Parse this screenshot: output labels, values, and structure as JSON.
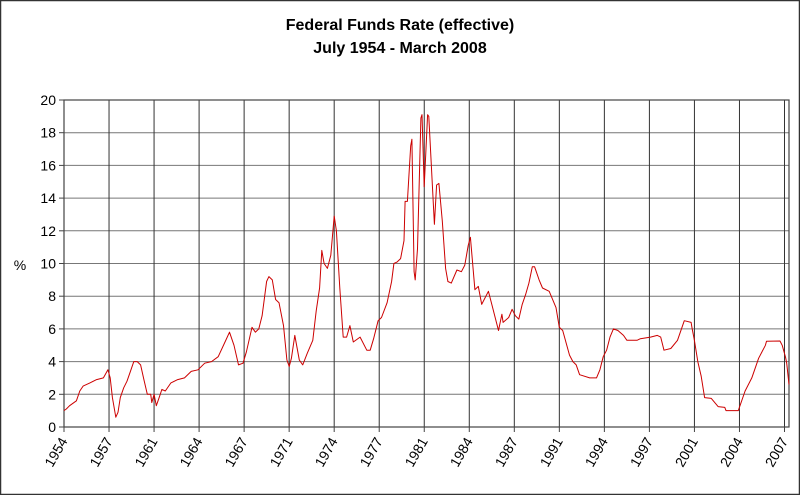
{
  "chart_data": {
    "type": "line",
    "title": "Federal Funds Rate (effective)",
    "subtitle": "July 1954 - March 2008",
    "xlabel": "",
    "ylabel": "%",
    "ylim": [
      0,
      20
    ],
    "yticks": [
      0,
      2,
      4,
      6,
      8,
      10,
      12,
      14,
      16,
      18,
      20
    ],
    "xlim": [
      "1954-07",
      "2008-03"
    ],
    "xtick_labels": [
      "1954",
      "1957",
      "1961",
      "1964",
      "1967",
      "1971",
      "1974",
      "1977",
      "1981",
      "1984",
      "1987",
      "1991",
      "1994",
      "1997",
      "2001",
      "2004",
      "2007"
    ],
    "xtick_dates": [
      "1954-07",
      "1957-11",
      "1961-03",
      "1964-07",
      "1967-11",
      "1971-03",
      "1974-07",
      "1977-11",
      "1981-03",
      "1984-07",
      "1987-11",
      "1991-03",
      "1994-07",
      "1997-11",
      "2001-03",
      "2004-07",
      "2007-11"
    ],
    "grid": true,
    "line_color": "#cc0000",
    "series": [
      {
        "points": [
          [
            "1954-07",
            1.0
          ],
          [
            "1954-09",
            1.1
          ],
          [
            "1954-12",
            1.3
          ],
          [
            "1955-06",
            1.6
          ],
          [
            "1955-09",
            2.2
          ],
          [
            "1955-12",
            2.5
          ],
          [
            "1956-06",
            2.7
          ],
          [
            "1956-12",
            2.9
          ],
          [
            "1957-06",
            3.0
          ],
          [
            "1957-10",
            3.5
          ],
          [
            "1957-12",
            3.0
          ],
          [
            "1958-02",
            1.8
          ],
          [
            "1958-05",
            0.6
          ],
          [
            "1958-07",
            0.9
          ],
          [
            "1958-09",
            1.8
          ],
          [
            "1958-12",
            2.4
          ],
          [
            "1959-03",
            2.8
          ],
          [
            "1959-06",
            3.4
          ],
          [
            "1959-09",
            4.0
          ],
          [
            "1959-12",
            4.0
          ],
          [
            "1960-03",
            3.8
          ],
          [
            "1960-06",
            2.9
          ],
          [
            "1960-09",
            2.0
          ],
          [
            "1960-12",
            2.0
          ],
          [
            "1961-01",
            1.5
          ],
          [
            "1961-03",
            2.0
          ],
          [
            "1961-05",
            1.3
          ],
          [
            "1961-07",
            1.7
          ],
          [
            "1961-10",
            2.3
          ],
          [
            "1962-01",
            2.2
          ],
          [
            "1962-06",
            2.7
          ],
          [
            "1962-12",
            2.9
          ],
          [
            "1963-06",
            3.0
          ],
          [
            "1963-12",
            3.4
          ],
          [
            "1964-06",
            3.5
          ],
          [
            "1964-12",
            3.9
          ],
          [
            "1965-06",
            4.0
          ],
          [
            "1965-12",
            4.3
          ],
          [
            "1966-06",
            5.2
          ],
          [
            "1966-10",
            5.8
          ],
          [
            "1967-02",
            5.0
          ],
          [
            "1967-06",
            3.8
          ],
          [
            "1967-10",
            3.9
          ],
          [
            "1968-01",
            4.6
          ],
          [
            "1968-06",
            6.1
          ],
          [
            "1968-09",
            5.8
          ],
          [
            "1968-12",
            6.0
          ],
          [
            "1969-03",
            6.8
          ],
          [
            "1969-07",
            8.9
          ],
          [
            "1969-09",
            9.2
          ],
          [
            "1969-12",
            9.0
          ],
          [
            "1970-03",
            7.8
          ],
          [
            "1970-06",
            7.6
          ],
          [
            "1970-10",
            6.2
          ],
          [
            "1971-01",
            4.1
          ],
          [
            "1971-03",
            3.7
          ],
          [
            "1971-05",
            4.2
          ],
          [
            "1971-08",
            5.6
          ],
          [
            "1971-12",
            4.1
          ],
          [
            "1972-03",
            3.8
          ],
          [
            "1972-07",
            4.5
          ],
          [
            "1972-12",
            5.3
          ],
          [
            "1973-03",
            7.1
          ],
          [
            "1973-06",
            8.5
          ],
          [
            "1973-08",
            10.8
          ],
          [
            "1973-10",
            10.0
          ],
          [
            "1974-01",
            9.7
          ],
          [
            "1974-04",
            10.5
          ],
          [
            "1974-07",
            12.9
          ],
          [
            "1974-09",
            12.0
          ],
          [
            "1974-12",
            8.5
          ],
          [
            "1975-03",
            5.5
          ],
          [
            "1975-06",
            5.5
          ],
          [
            "1975-09",
            6.2
          ],
          [
            "1975-12",
            5.2
          ],
          [
            "1976-06",
            5.5
          ],
          [
            "1976-12",
            4.7
          ],
          [
            "1977-03",
            4.7
          ],
          [
            "1977-06",
            5.4
          ],
          [
            "1977-10",
            6.5
          ],
          [
            "1978-01",
            6.7
          ],
          [
            "1978-06",
            7.6
          ],
          [
            "1978-10",
            8.9
          ],
          [
            "1978-12",
            10.0
          ],
          [
            "1979-03",
            10.1
          ],
          [
            "1979-06",
            10.3
          ],
          [
            "1979-09",
            11.4
          ],
          [
            "1979-10",
            13.8
          ],
          [
            "1979-12",
            13.8
          ],
          [
            "1980-03",
            17.2
          ],
          [
            "1980-04",
            17.6
          ],
          [
            "1980-06",
            9.5
          ],
          [
            "1980-07",
            9.0
          ],
          [
            "1980-09",
            10.9
          ],
          [
            "1980-12",
            18.9
          ],
          [
            "1981-01",
            19.1
          ],
          [
            "1981-03",
            14.7
          ],
          [
            "1981-06",
            19.1
          ],
          [
            "1981-07",
            19.0
          ],
          [
            "1981-10",
            15.1
          ],
          [
            "1981-12",
            12.4
          ],
          [
            "1982-02",
            14.8
          ],
          [
            "1982-04",
            14.9
          ],
          [
            "1982-07",
            12.6
          ],
          [
            "1982-10",
            9.7
          ],
          [
            "1982-12",
            8.9
          ],
          [
            "1983-03",
            8.8
          ],
          [
            "1983-08",
            9.6
          ],
          [
            "1983-12",
            9.5
          ],
          [
            "1984-03",
            9.9
          ],
          [
            "1984-06",
            11.1
          ],
          [
            "1984-08",
            11.6
          ],
          [
            "1984-12",
            8.4
          ],
          [
            "1985-03",
            8.6
          ],
          [
            "1985-06",
            7.5
          ],
          [
            "1985-12",
            8.3
          ],
          [
            "1986-03",
            7.5
          ],
          [
            "1986-09",
            5.9
          ],
          [
            "1986-12",
            6.9
          ],
          [
            "1987-01",
            6.4
          ],
          [
            "1987-06",
            6.7
          ],
          [
            "1987-09",
            7.2
          ],
          [
            "1987-12",
            6.8
          ],
          [
            "1988-03",
            6.6
          ],
          [
            "1988-06",
            7.5
          ],
          [
            "1988-09",
            8.1
          ],
          [
            "1988-12",
            8.8
          ],
          [
            "1989-03",
            9.8
          ],
          [
            "1989-05",
            9.8
          ],
          [
            "1989-09",
            9.0
          ],
          [
            "1989-12",
            8.5
          ],
          [
            "1990-06",
            8.3
          ],
          [
            "1990-12",
            7.3
          ],
          [
            "1991-03",
            6.1
          ],
          [
            "1991-06",
            5.9
          ],
          [
            "1991-12",
            4.4
          ],
          [
            "1992-03",
            4.0
          ],
          [
            "1992-06",
            3.8
          ],
          [
            "1992-09",
            3.2
          ],
          [
            "1993-06",
            3.0
          ],
          [
            "1993-12",
            3.0
          ],
          [
            "1994-03",
            3.5
          ],
          [
            "1994-06",
            4.3
          ],
          [
            "1994-09",
            4.7
          ],
          [
            "1994-12",
            5.5
          ],
          [
            "1995-03",
            6.0
          ],
          [
            "1995-07",
            5.9
          ],
          [
            "1995-12",
            5.6
          ],
          [
            "1996-03",
            5.3
          ],
          [
            "1996-12",
            5.3
          ],
          [
            "1997-03",
            5.4
          ],
          [
            "1997-12",
            5.5
          ],
          [
            "1998-06",
            5.6
          ],
          [
            "1998-09",
            5.5
          ],
          [
            "1998-12",
            4.7
          ],
          [
            "1999-06",
            4.8
          ],
          [
            "1999-12",
            5.3
          ],
          [
            "2000-06",
            6.5
          ],
          [
            "2000-12",
            6.4
          ],
          [
            "2001-01",
            6.0
          ],
          [
            "2001-03",
            5.3
          ],
          [
            "2001-06",
            4.0
          ],
          [
            "2001-09",
            3.1
          ],
          [
            "2001-12",
            1.8
          ],
          [
            "2002-06",
            1.75
          ],
          [
            "2002-12",
            1.25
          ],
          [
            "2003-06",
            1.2
          ],
          [
            "2003-07",
            1.0
          ],
          [
            "2004-06",
            1.0
          ],
          [
            "2004-12",
            2.2
          ],
          [
            "2005-06",
            3.0
          ],
          [
            "2005-12",
            4.2
          ],
          [
            "2006-06",
            5.0
          ],
          [
            "2006-07",
            5.25
          ],
          [
            "2007-07",
            5.26
          ],
          [
            "2007-09",
            5.0
          ],
          [
            "2007-12",
            4.25
          ],
          [
            "2008-01",
            3.9
          ],
          [
            "2008-03",
            2.6
          ]
        ]
      }
    ]
  }
}
